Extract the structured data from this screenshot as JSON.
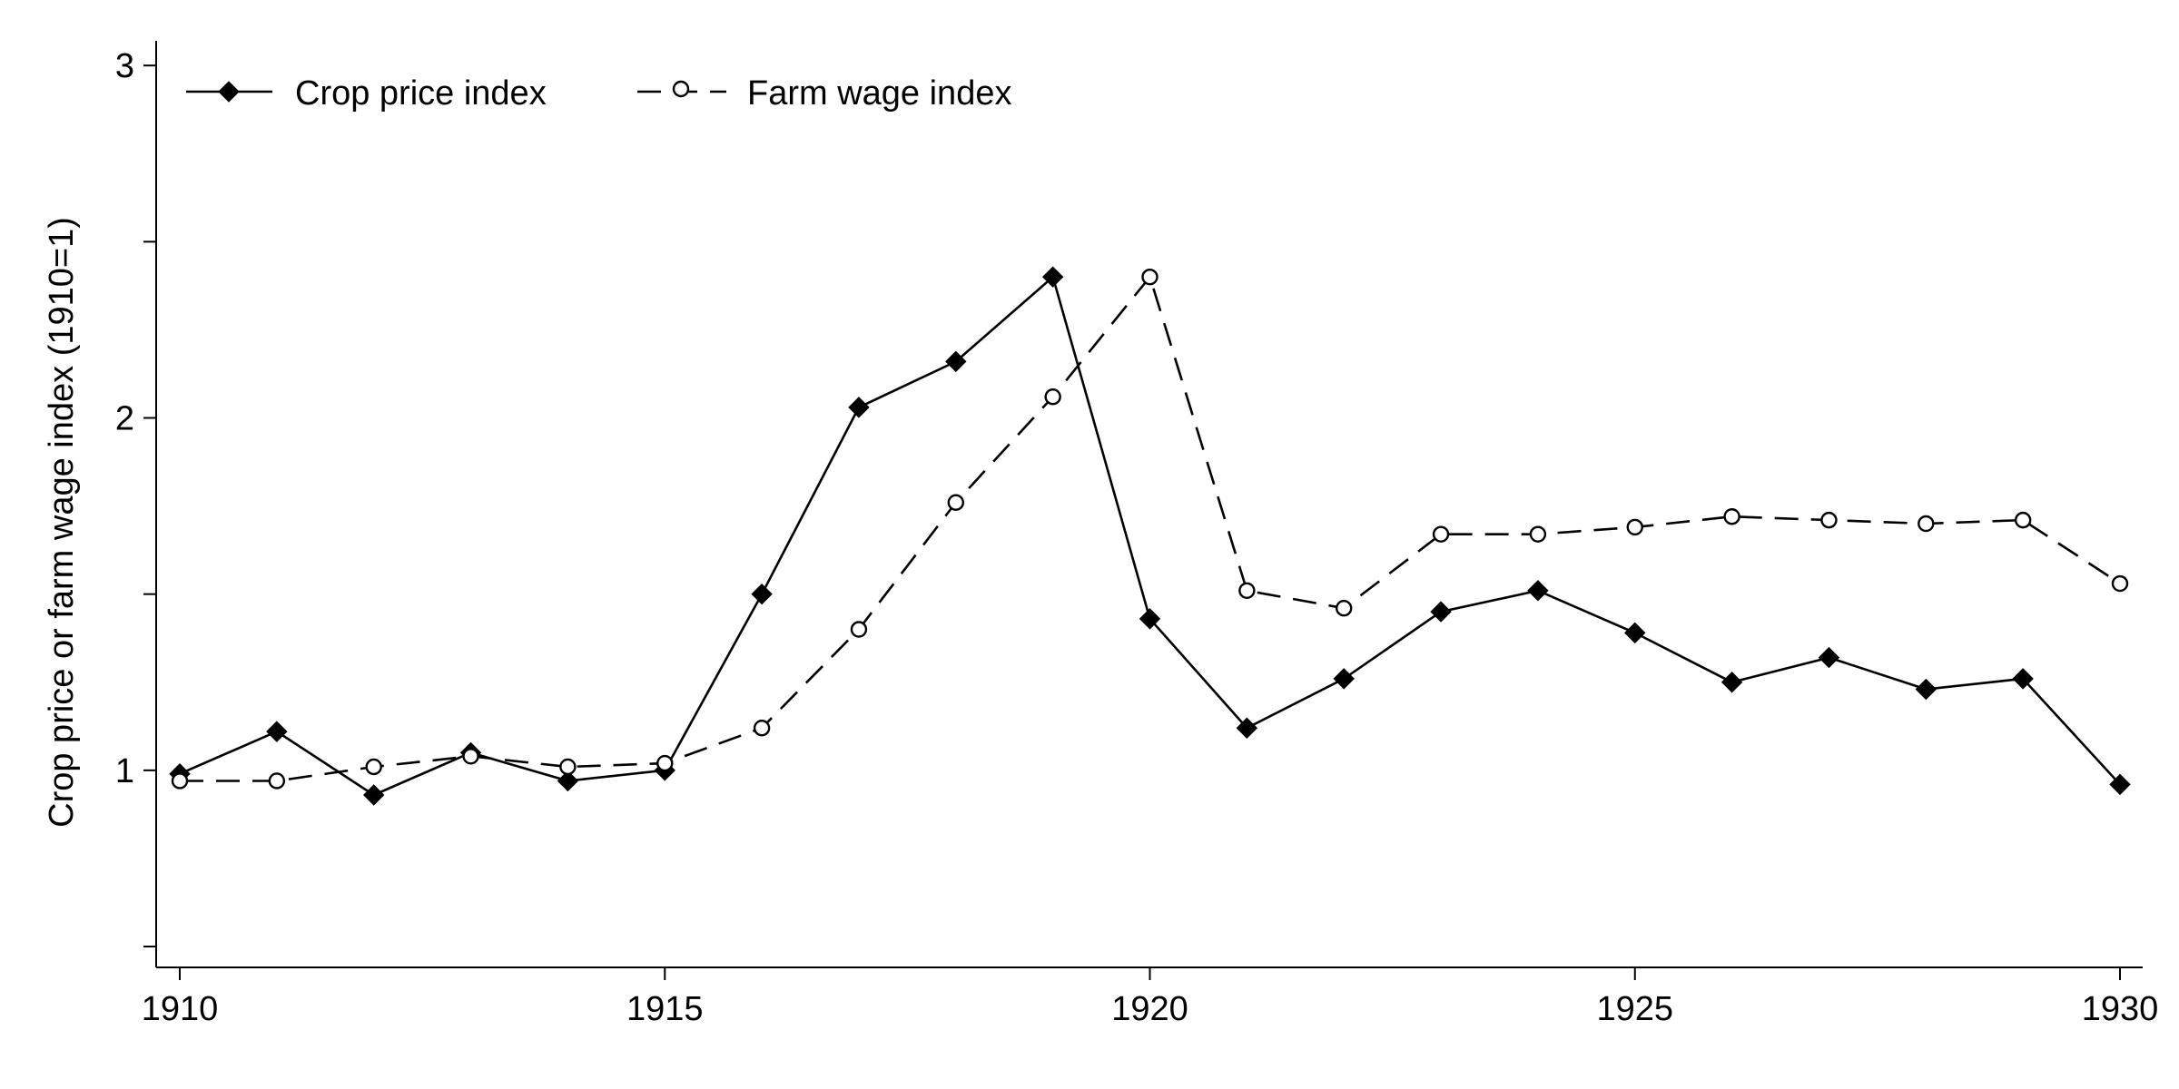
{
  "chart_data": {
    "type": "line",
    "title": "",
    "xlabel": "",
    "ylabel": "Crop price or farm wage index (1910=1)",
    "x": [
      1910,
      1911,
      1912,
      1913,
      1914,
      1915,
      1916,
      1917,
      1918,
      1919,
      1920,
      1921,
      1922,
      1923,
      1924,
      1925,
      1926,
      1927,
      1928,
      1929,
      1930
    ],
    "xlim": [
      1910,
      1930
    ],
    "ylim": [
      0.5,
      3.07
    ],
    "xticks": [
      1910,
      1915,
      1920,
      1925,
      1930
    ],
    "yticks": [
      1,
      2,
      3
    ],
    "xtick_labels": [
      "1910",
      "1915",
      "1920",
      "1925",
      "1930"
    ],
    "ytick_labels": [
      "1",
      "2",
      "3"
    ],
    "grid": false,
    "legend_position": "top-left",
    "series": [
      {
        "name": "Crop price index",
        "marker": "diamond-filled",
        "line_style": "solid",
        "color": "#000000",
        "values": [
          0.99,
          1.11,
          0.93,
          1.05,
          0.97,
          1.0,
          1.5,
          2.03,
          2.16,
          2.4,
          1.43,
          1.12,
          1.26,
          1.45,
          1.51,
          1.39,
          1.25,
          1.32,
          1.23,
          1.26,
          0.96
        ]
      },
      {
        "name": "Farm wage index",
        "marker": "circle-hollow",
        "line_style": "dashed",
        "color": "#000000",
        "values": [
          0.97,
          0.97,
          1.01,
          1.04,
          1.01,
          1.02,
          1.12,
          1.4,
          1.76,
          2.06,
          2.4,
          1.51,
          1.46,
          1.67,
          1.67,
          1.69,
          1.72,
          1.71,
          1.7,
          1.71,
          1.53
        ]
      }
    ]
  }
}
